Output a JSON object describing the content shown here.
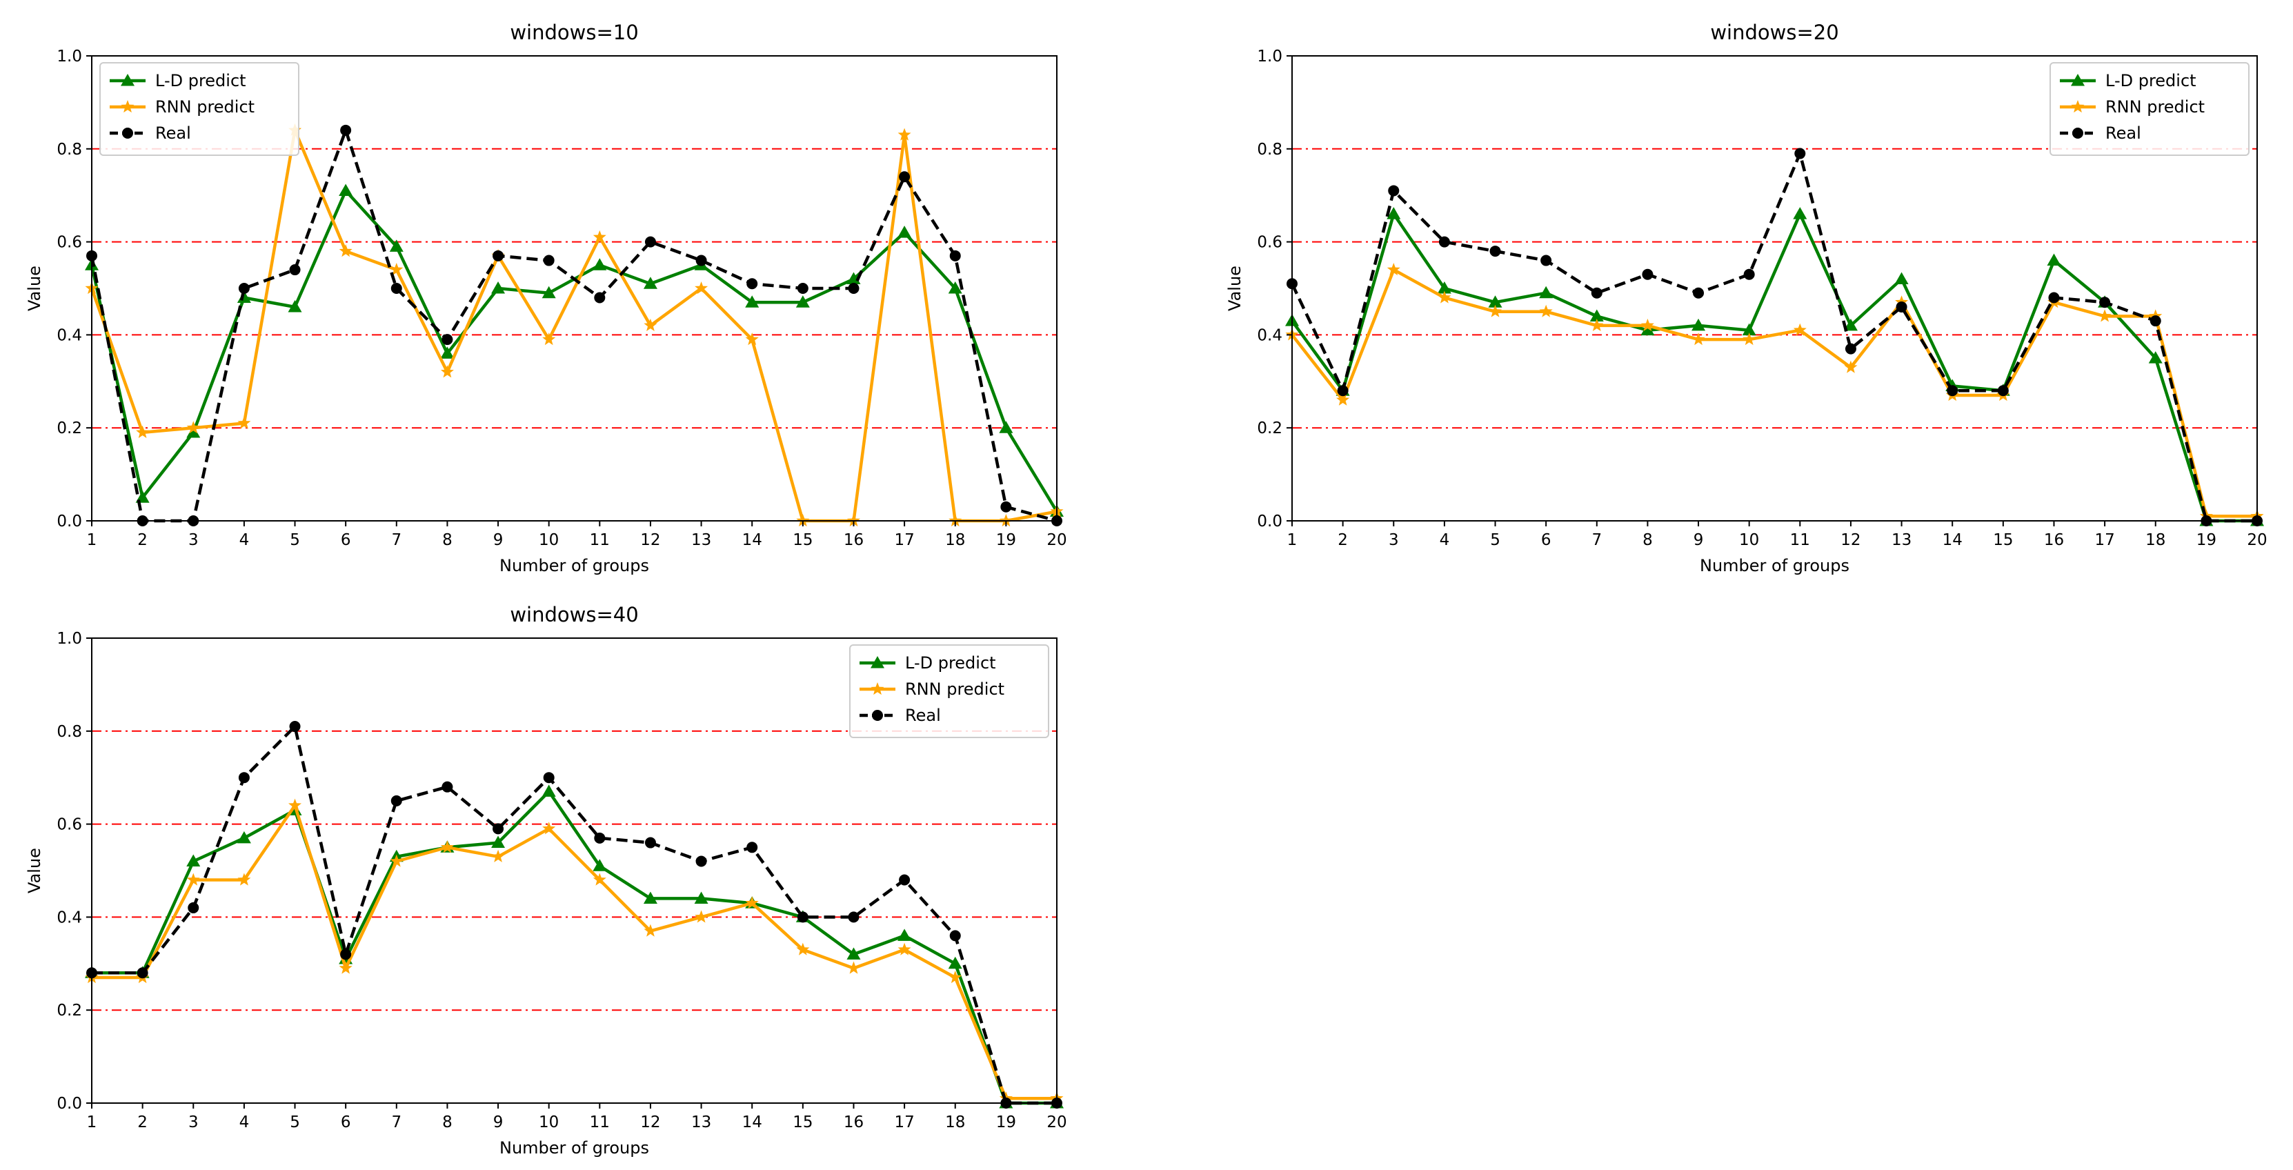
{
  "chart_data": [
    {
      "type": "line",
      "title": "windows=10",
      "xlabel": "Number of groups",
      "ylabel": "Value",
      "xlim": [
        1,
        20
      ],
      "ylim": [
        0,
        1.0
      ],
      "xticks": [
        1,
        2,
        3,
        4,
        5,
        6,
        7,
        8,
        9,
        10,
        11,
        12,
        13,
        14,
        15,
        16,
        17,
        18,
        19,
        20
      ],
      "yticks": [
        0.0,
        0.2,
        0.4,
        0.6,
        0.8,
        1.0
      ],
      "ytick_labels": [
        "0.0",
        "0.2",
        "0.4",
        "0.6",
        "0.8",
        "1.0"
      ],
      "grid": "horizontal dash-dot red lines at 0.2, 0.4, 0.6, 0.8, 1.0",
      "legend_placement": "upper-left",
      "x": [
        1,
        2,
        3,
        4,
        5,
        6,
        7,
        8,
        9,
        10,
        11,
        12,
        13,
        14,
        15,
        16,
        17,
        18,
        19,
        20
      ],
      "series": [
        {
          "name": "L-D predict",
          "color": "#008000",
          "marker": "triangle",
          "style": "solid",
          "values": [
            0.55,
            0.05,
            0.19,
            0.48,
            0.46,
            0.71,
            0.59,
            0.36,
            0.5,
            0.49,
            0.55,
            0.51,
            0.55,
            0.47,
            0.47,
            0.52,
            0.62,
            0.5,
            0.2,
            0.02
          ]
        },
        {
          "name": "RNN predict",
          "color": "#ffa500",
          "marker": "star",
          "style": "solid",
          "values": [
            0.5,
            0.19,
            0.2,
            0.21,
            0.84,
            0.58,
            0.54,
            0.32,
            0.57,
            0.39,
            0.61,
            0.42,
            0.5,
            0.39,
            0.0,
            0.0,
            0.83,
            0.0,
            0.0,
            0.02
          ]
        },
        {
          "name": "Real",
          "color": "#000000",
          "marker": "circle",
          "style": "dashed",
          "values": [
            0.57,
            0.0,
            0.0,
            0.5,
            0.54,
            0.84,
            0.5,
            0.39,
            0.57,
            0.56,
            0.48,
            0.6,
            0.56,
            0.51,
            0.5,
            0.5,
            0.74,
            0.57,
            0.03,
            0.0
          ]
        }
      ]
    },
    {
      "type": "line",
      "title": "windows=20",
      "xlabel": "Number of groups",
      "ylabel": "Value",
      "xlim": [
        1,
        20
      ],
      "ylim": [
        0,
        1.0
      ],
      "xticks": [
        1,
        2,
        3,
        4,
        5,
        6,
        7,
        8,
        9,
        10,
        11,
        12,
        13,
        14,
        15,
        16,
        17,
        18,
        19,
        20
      ],
      "yticks": [
        0.0,
        0.2,
        0.4,
        0.6,
        0.8,
        1.0
      ],
      "ytick_labels": [
        "0.0",
        "0.2",
        "0.4",
        "0.6",
        "0.8",
        "1.0"
      ],
      "grid": "horizontal dash-dot red lines at 0.2, 0.4, 0.6, 0.8, 1.0",
      "legend_placement": "upper-right",
      "x": [
        1,
        2,
        3,
        4,
        5,
        6,
        7,
        8,
        9,
        10,
        11,
        12,
        13,
        14,
        15,
        16,
        17,
        18,
        19,
        20
      ],
      "series": [
        {
          "name": "L-D predict",
          "color": "#008000",
          "marker": "triangle",
          "style": "solid",
          "values": [
            0.43,
            0.28,
            0.66,
            0.5,
            0.47,
            0.49,
            0.44,
            0.41,
            0.42,
            0.41,
            0.66,
            0.42,
            0.52,
            0.29,
            0.28,
            0.56,
            0.47,
            0.35,
            0.0,
            0.0
          ]
        },
        {
          "name": "RNN predict",
          "color": "#ffa500",
          "marker": "star",
          "style": "solid",
          "values": [
            0.4,
            0.26,
            0.54,
            0.48,
            0.45,
            0.45,
            0.42,
            0.42,
            0.39,
            0.39,
            0.41,
            0.33,
            0.47,
            0.27,
            0.27,
            0.47,
            0.44,
            0.44,
            0.01,
            0.01
          ]
        },
        {
          "name": "Real",
          "color": "#000000",
          "marker": "circle",
          "style": "dashed",
          "values": [
            0.51,
            0.28,
            0.71,
            0.6,
            0.58,
            0.56,
            0.49,
            0.53,
            0.49,
            0.53,
            0.79,
            0.37,
            0.46,
            0.28,
            0.28,
            0.48,
            0.47,
            0.43,
            0.0,
            0.0
          ]
        }
      ]
    },
    {
      "type": "line",
      "title": "windows=40",
      "xlabel": "Number of groups",
      "ylabel": "Value",
      "xlim": [
        1,
        20
      ],
      "ylim": [
        0,
        1.0
      ],
      "xticks": [
        1,
        2,
        3,
        4,
        5,
        6,
        7,
        8,
        9,
        10,
        11,
        12,
        13,
        14,
        15,
        16,
        17,
        18,
        19,
        20
      ],
      "yticks": [
        0.0,
        0.2,
        0.4,
        0.6,
        0.8,
        1.0
      ],
      "ytick_labels": [
        "0.0",
        "0.2",
        "0.4",
        "0.6",
        "0.8",
        "1.0"
      ],
      "grid": "horizontal dash-dot red lines at 0.2, 0.4, 0.6, 0.8, 1.0",
      "legend_placement": "upper-right",
      "x": [
        1,
        2,
        3,
        4,
        5,
        6,
        7,
        8,
        9,
        10,
        11,
        12,
        13,
        14,
        15,
        16,
        17,
        18,
        19,
        20
      ],
      "series": [
        {
          "name": "L-D predict",
          "color": "#008000",
          "marker": "triangle",
          "style": "solid",
          "values": [
            0.28,
            0.28,
            0.52,
            0.57,
            0.63,
            0.31,
            0.53,
            0.55,
            0.56,
            0.67,
            0.51,
            0.44,
            0.44,
            0.43,
            0.4,
            0.32,
            0.36,
            0.3,
            0.0,
            0.0
          ]
        },
        {
          "name": "RNN predict",
          "color": "#ffa500",
          "marker": "star",
          "style": "solid",
          "values": [
            0.27,
            0.27,
            0.48,
            0.48,
            0.64,
            0.29,
            0.52,
            0.55,
            0.53,
            0.59,
            0.48,
            0.37,
            0.4,
            0.43,
            0.33,
            0.29,
            0.33,
            0.27,
            0.01,
            0.01
          ]
        },
        {
          "name": "Real",
          "color": "#000000",
          "marker": "circle",
          "style": "dashed",
          "values": [
            0.28,
            0.28,
            0.42,
            0.7,
            0.81,
            0.32,
            0.65,
            0.68,
            0.59,
            0.7,
            0.57,
            0.56,
            0.52,
            0.55,
            0.4,
            0.4,
            0.48,
            0.36,
            0.0,
            0.0
          ]
        }
      ]
    }
  ]
}
